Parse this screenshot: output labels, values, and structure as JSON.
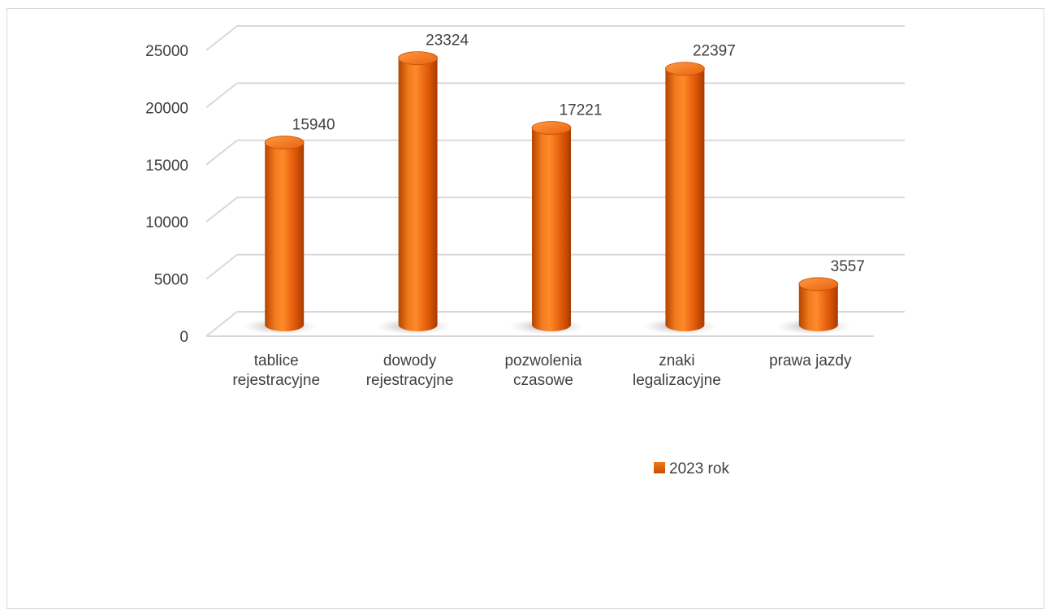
{
  "chart_data": {
    "type": "bar",
    "categories": [
      [
        "tablice",
        "rejestracyjne"
      ],
      [
        "dowody",
        "rejestracyjne"
      ],
      [
        "pozwolenia",
        "czasowe"
      ],
      [
        "znaki",
        "legalizacyjne"
      ],
      [
        "prawa jazdy"
      ]
    ],
    "series": [
      {
        "name": "2023 rok",
        "values": [
          15940,
          23324,
          17221,
          22397,
          3557
        ],
        "color": "#e8620f"
      }
    ],
    "data_labels": [
      "15940",
      "23324",
      "17221",
      "22397",
      "3557"
    ],
    "yticks": [
      "0",
      "5000",
      "10000",
      "15000",
      "20000",
      "25000"
    ],
    "ylim": [
      0,
      25000
    ],
    "ytick_step": 5000,
    "grid": true,
    "legend_position": "bottom",
    "style": "3d-cylinder",
    "title": "",
    "xlabel": "",
    "ylabel": ""
  }
}
